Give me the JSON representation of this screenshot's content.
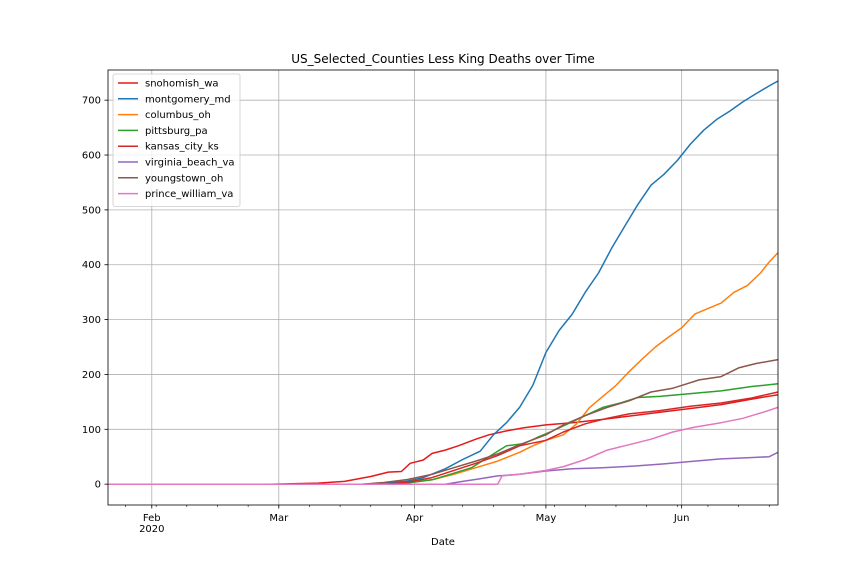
{
  "chart_data": {
    "type": "line",
    "title": "US_Selected_Counties Less King Deaths over Time",
    "xlabel": "Date",
    "ylabel": "",
    "x_start": "2020-01-22",
    "x_end": "2020-06-23",
    "xlim": [
      "2020-01-22",
      "2020-06-23"
    ],
    "ylim": [
      -38,
      755
    ],
    "yticks": [
      0,
      100,
      200,
      300,
      400,
      500,
      600,
      700
    ],
    "xticks": [
      {
        "date": "2020-02-01",
        "label": "Feb",
        "sublabel": "2020"
      },
      {
        "date": "2020-03-01",
        "label": "Mar",
        "sublabel": ""
      },
      {
        "date": "2020-04-01",
        "label": "Apr",
        "sublabel": ""
      },
      {
        "date": "2020-05-01",
        "label": "May",
        "sublabel": ""
      },
      {
        "date": "2020-06-01",
        "label": "Jun",
        "sublabel": ""
      }
    ],
    "grid": true,
    "legend_position": "top-left",
    "series": [
      {
        "name": "snohomish_wa",
        "color": "#e41a1c",
        "points": [
          [
            "2020-01-22",
            0
          ],
          [
            "2020-02-28",
            0
          ],
          [
            "2020-03-10",
            2
          ],
          [
            "2020-03-16",
            5
          ],
          [
            "2020-03-22",
            14
          ],
          [
            "2020-03-26",
            22
          ],
          [
            "2020-03-29",
            23
          ],
          [
            "2020-03-31",
            38
          ],
          [
            "2020-04-03",
            44
          ],
          [
            "2020-04-05",
            56
          ],
          [
            "2020-04-08",
            62
          ],
          [
            "2020-04-11",
            70
          ],
          [
            "2020-04-15",
            82
          ],
          [
            "2020-04-18",
            90
          ],
          [
            "2020-04-22",
            97
          ],
          [
            "2020-04-26",
            103
          ],
          [
            "2020-05-01",
            108
          ],
          [
            "2020-05-07",
            112
          ],
          [
            "2020-05-14",
            118
          ],
          [
            "2020-05-20",
            124
          ],
          [
            "2020-05-27",
            131
          ],
          [
            "2020-06-03",
            138
          ],
          [
            "2020-06-10",
            145
          ],
          [
            "2020-06-17",
            155
          ],
          [
            "2020-06-23",
            163
          ]
        ]
      },
      {
        "name": "montgomery_md",
        "color": "#1f77b4",
        "points": [
          [
            "2020-01-22",
            0
          ],
          [
            "2020-03-20",
            0
          ],
          [
            "2020-03-25",
            2
          ],
          [
            "2020-03-30",
            5
          ],
          [
            "2020-04-03",
            12
          ],
          [
            "2020-04-08",
            28
          ],
          [
            "2020-04-12",
            45
          ],
          [
            "2020-04-16",
            60
          ],
          [
            "2020-04-19",
            90
          ],
          [
            "2020-04-22",
            112
          ],
          [
            "2020-04-25",
            140
          ],
          [
            "2020-04-28",
            180
          ],
          [
            "2020-05-01",
            240
          ],
          [
            "2020-05-04",
            280
          ],
          [
            "2020-05-07",
            310
          ],
          [
            "2020-05-10",
            350
          ],
          [
            "2020-05-13",
            385
          ],
          [
            "2020-05-16",
            430
          ],
          [
            "2020-05-19",
            470
          ],
          [
            "2020-05-22",
            510
          ],
          [
            "2020-05-25",
            545
          ],
          [
            "2020-05-28",
            565
          ],
          [
            "2020-05-31",
            590
          ],
          [
            "2020-06-03",
            620
          ],
          [
            "2020-06-06",
            645
          ],
          [
            "2020-06-09",
            665
          ],
          [
            "2020-06-12",
            680
          ],
          [
            "2020-06-15",
            697
          ],
          [
            "2020-06-18",
            712
          ],
          [
            "2020-06-21",
            726
          ],
          [
            "2020-06-23",
            735
          ]
        ]
      },
      {
        "name": "columbus_oh",
        "color": "#ff7f0e",
        "points": [
          [
            "2020-01-22",
            0
          ],
          [
            "2020-03-25",
            0
          ],
          [
            "2020-03-30",
            2
          ],
          [
            "2020-04-05",
            8
          ],
          [
            "2020-04-10",
            18
          ],
          [
            "2020-04-15",
            30
          ],
          [
            "2020-04-20",
            42
          ],
          [
            "2020-04-25",
            58
          ],
          [
            "2020-04-28",
            70
          ],
          [
            "2020-05-01",
            80
          ],
          [
            "2020-05-05",
            90
          ],
          [
            "2020-05-08",
            110
          ],
          [
            "2020-05-11",
            140
          ],
          [
            "2020-05-14",
            160
          ],
          [
            "2020-05-17",
            180
          ],
          [
            "2020-05-20",
            205
          ],
          [
            "2020-05-23",
            228
          ],
          [
            "2020-05-26",
            250
          ],
          [
            "2020-05-29",
            268
          ],
          [
            "2020-06-01",
            285
          ],
          [
            "2020-06-04",
            310
          ],
          [
            "2020-06-07",
            320
          ],
          [
            "2020-06-10",
            330
          ],
          [
            "2020-06-13",
            350
          ],
          [
            "2020-06-16",
            362
          ],
          [
            "2020-06-19",
            385
          ],
          [
            "2020-06-21",
            405
          ],
          [
            "2020-06-23",
            422
          ]
        ]
      },
      {
        "name": "pittsburg_pa",
        "color": "#2ca02c",
        "points": [
          [
            "2020-01-22",
            0
          ],
          [
            "2020-03-25",
            0
          ],
          [
            "2020-03-30",
            2
          ],
          [
            "2020-04-05",
            8
          ],
          [
            "2020-04-10",
            20
          ],
          [
            "2020-04-14",
            30
          ],
          [
            "2020-04-18",
            50
          ],
          [
            "2020-04-22",
            70
          ],
          [
            "2020-04-26",
            74
          ],
          [
            "2020-04-29",
            85
          ],
          [
            "2020-05-02",
            95
          ],
          [
            "2020-05-06",
            110
          ],
          [
            "2020-05-10",
            125
          ],
          [
            "2020-05-14",
            140
          ],
          [
            "2020-05-18",
            148
          ],
          [
            "2020-05-22",
            158
          ],
          [
            "2020-05-27",
            160
          ],
          [
            "2020-06-03",
            165
          ],
          [
            "2020-06-10",
            170
          ],
          [
            "2020-06-17",
            178
          ],
          [
            "2020-06-23",
            183
          ]
        ]
      },
      {
        "name": "kansas_city_ks",
        "color": "#d62728",
        "points": [
          [
            "2020-01-22",
            0
          ],
          [
            "2020-03-25",
            0
          ],
          [
            "2020-03-30",
            3
          ],
          [
            "2020-04-05",
            12
          ],
          [
            "2020-04-10",
            25
          ],
          [
            "2020-04-15",
            38
          ],
          [
            "2020-04-20",
            52
          ],
          [
            "2020-04-25",
            70
          ],
          [
            "2020-05-01",
            80
          ],
          [
            "2020-05-05",
            95
          ],
          [
            "2020-05-10",
            110
          ],
          [
            "2020-05-15",
            120
          ],
          [
            "2020-05-20",
            128
          ],
          [
            "2020-05-27",
            134
          ],
          [
            "2020-06-03",
            142
          ],
          [
            "2020-06-10",
            148
          ],
          [
            "2020-06-17",
            157
          ],
          [
            "2020-06-23",
            168
          ]
        ]
      },
      {
        "name": "virginia_beach_va",
        "color": "#9467bd",
        "points": [
          [
            "2020-01-22",
            0
          ],
          [
            "2020-04-08",
            0
          ],
          [
            "2020-04-12",
            5
          ],
          [
            "2020-04-16",
            10
          ],
          [
            "2020-04-20",
            15
          ],
          [
            "2020-04-25",
            18
          ],
          [
            "2020-05-01",
            24
          ],
          [
            "2020-05-07",
            28
          ],
          [
            "2020-05-14",
            30
          ],
          [
            "2020-05-21",
            33
          ],
          [
            "2020-05-28",
            37
          ],
          [
            "2020-06-04",
            42
          ],
          [
            "2020-06-10",
            46
          ],
          [
            "2020-06-16",
            48
          ],
          [
            "2020-06-21",
            50
          ],
          [
            "2020-06-23",
            58
          ]
        ]
      },
      {
        "name": "youngstown_oh",
        "color": "#8c564b",
        "points": [
          [
            "2020-01-22",
            0
          ],
          [
            "2020-03-20",
            0
          ],
          [
            "2020-03-25",
            3
          ],
          [
            "2020-03-30",
            8
          ],
          [
            "2020-04-05",
            18
          ],
          [
            "2020-04-10",
            30
          ],
          [
            "2020-04-15",
            42
          ],
          [
            "2020-04-20",
            55
          ],
          [
            "2020-04-25",
            72
          ],
          [
            "2020-05-01",
            90
          ],
          [
            "2020-05-05",
            108
          ],
          [
            "2020-05-10",
            125
          ],
          [
            "2020-05-15",
            140
          ],
          [
            "2020-05-20",
            152
          ],
          [
            "2020-05-25",
            168
          ],
          [
            "2020-05-30",
            175
          ],
          [
            "2020-06-05",
            190
          ],
          [
            "2020-06-10",
            196
          ],
          [
            "2020-06-14",
            212
          ],
          [
            "2020-06-18",
            220
          ],
          [
            "2020-06-23",
            227
          ]
        ]
      },
      {
        "name": "prince_william_va",
        "color": "#e377c2",
        "points": [
          [
            "2020-01-22",
            0
          ],
          [
            "2020-04-20",
            0
          ],
          [
            "2020-04-21",
            15
          ],
          [
            "2020-04-25",
            18
          ],
          [
            "2020-05-01",
            25
          ],
          [
            "2020-05-05",
            32
          ],
          [
            "2020-05-10",
            45
          ],
          [
            "2020-05-15",
            62
          ],
          [
            "2020-05-20",
            72
          ],
          [
            "2020-05-25",
            82
          ],
          [
            "2020-05-30",
            95
          ],
          [
            "2020-06-04",
            104
          ],
          [
            "2020-06-10",
            112
          ],
          [
            "2020-06-15",
            120
          ],
          [
            "2020-06-20",
            132
          ],
          [
            "2020-06-23",
            140
          ]
        ]
      }
    ]
  }
}
